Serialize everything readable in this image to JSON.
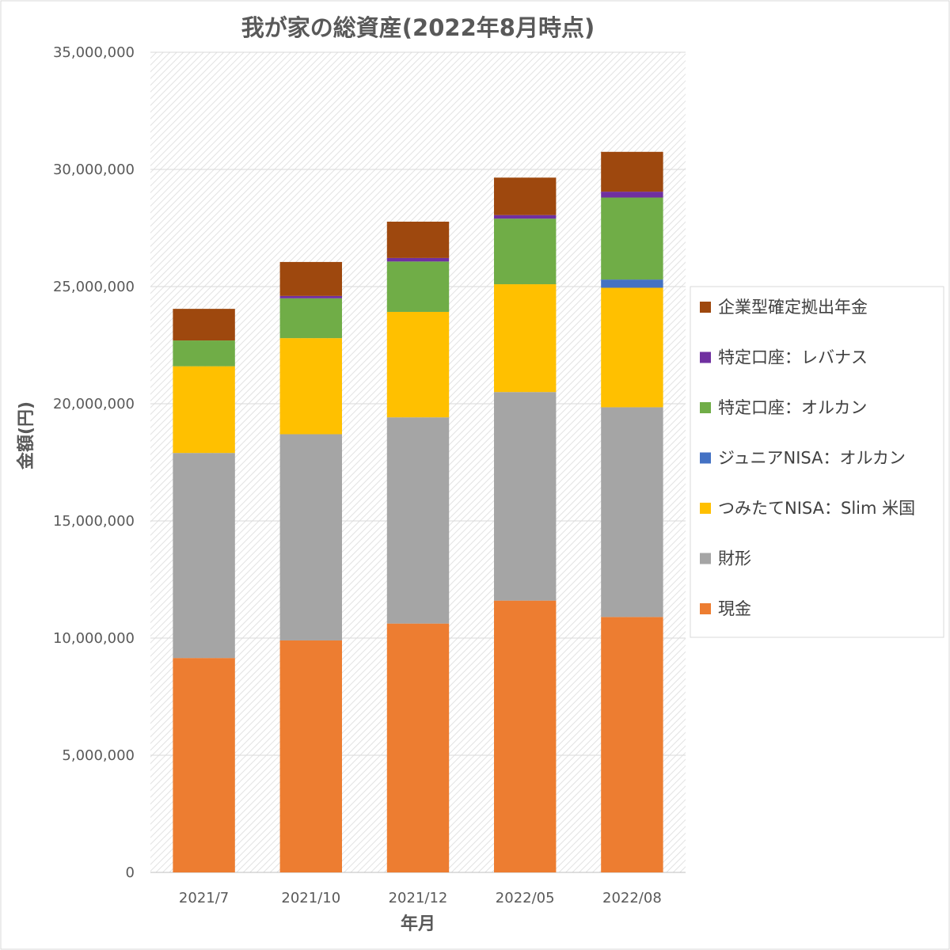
{
  "chart_data": {
    "type": "bar",
    "stacked": true,
    "title": "我が家の総資産(2022年8月時点)",
    "xlabel": "年月",
    "ylabel": "金額(円)",
    "ylim": [
      0,
      35000000
    ],
    "y_tick_step": 5000000,
    "y_tick_labels": [
      "0",
      "5,000,000",
      "10,000,000",
      "15,000,000",
      "20,000,000",
      "25,000,000",
      "30,000,000",
      "35,000,000"
    ],
    "categories": [
      "2021/7",
      "2021/10",
      "2021/12",
      "2022/05",
      "2022/08"
    ],
    "legend_position": "right",
    "grid": true,
    "series": [
      {
        "name": "現金",
        "color": "#ED7D31",
        "values": [
          9150000,
          9900000,
          10620000,
          11600000,
          10900000
        ]
      },
      {
        "name": "財形",
        "color": "#A5A5A5",
        "values": [
          8750000,
          8800000,
          8800000,
          8900000,
          8950000
        ]
      },
      {
        "name": "つみたてNISA：Slim 米国",
        "color": "#FFC000",
        "values": [
          3700000,
          4100000,
          4500000,
          4600000,
          5100000
        ]
      },
      {
        "name": "ジュニアNISA：オルカン",
        "color": "#4472C4",
        "values": [
          0,
          0,
          0,
          0,
          350000
        ]
      },
      {
        "name": "特定口座：オルカン",
        "color": "#70AD47",
        "values": [
          1100000,
          1700000,
          2150000,
          2800000,
          3500000
        ]
      },
      {
        "name": "特定口座：レバナス",
        "color": "#7030A0",
        "values": [
          0,
          100000,
          150000,
          150000,
          250000
        ]
      },
      {
        "name": "企業型確定拠出年金",
        "color": "#9E480E",
        "values": [
          1350000,
          1450000,
          1550000,
          1600000,
          1700000
        ]
      }
    ]
  }
}
